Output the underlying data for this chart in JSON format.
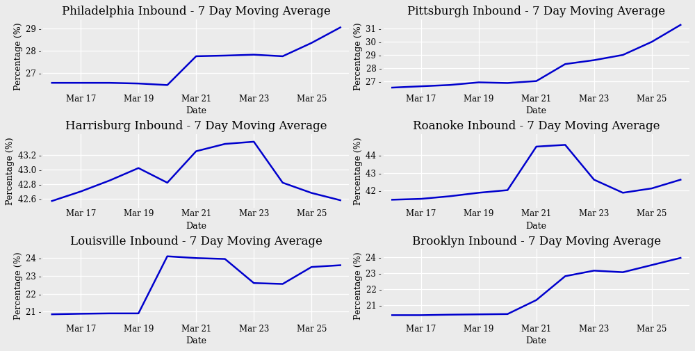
{
  "charts": [
    {
      "title": "Philadelphia Inbound - 7 Day Moving Average",
      "col": 0,
      "row": 0,
      "values": [
        26.55,
        26.55,
        26.55,
        26.52,
        26.45,
        27.75,
        27.78,
        27.82,
        27.75,
        28.35,
        29.05
      ],
      "yticks": [
        27,
        28,
        29
      ],
      "ylim": [
        26.1,
        29.4
      ]
    },
    {
      "title": "Pittsburgh Inbound - 7 Day Moving Average",
      "col": 1,
      "row": 0,
      "values": [
        26.5,
        26.6,
        26.7,
        26.9,
        26.85,
        27.0,
        28.3,
        28.6,
        29.0,
        30.0,
        31.3
      ],
      "yticks": [
        27,
        28,
        29,
        30,
        31
      ],
      "ylim": [
        26.1,
        31.7
      ]
    },
    {
      "title": "Harrisburg Inbound - 7 Day Moving Average",
      "col": 0,
      "row": 1,
      "values": [
        42.57,
        42.7,
        42.85,
        43.02,
        42.82,
        43.25,
        43.35,
        43.38,
        42.82,
        42.68,
        42.58
      ],
      "yticks": [
        42.6,
        42.8,
        43.0,
        43.2
      ],
      "ylim": [
        42.48,
        43.48
      ]
    },
    {
      "title": "Roanoke Inbound - 7 Day Moving Average",
      "col": 1,
      "row": 1,
      "values": [
        41.45,
        41.5,
        41.65,
        41.85,
        42.0,
        44.5,
        44.6,
        42.6,
        41.85,
        42.1,
        42.6
      ],
      "yticks": [
        42,
        43,
        44
      ],
      "ylim": [
        41.0,
        45.2
      ]
    },
    {
      "title": "Louisville Inbound - 7 Day Moving Average",
      "col": 0,
      "row": 2,
      "values": [
        20.85,
        20.88,
        20.9,
        20.9,
        24.1,
        24.0,
        23.95,
        22.6,
        22.55,
        23.5,
        23.6
      ],
      "yticks": [
        21,
        22,
        23,
        24
      ],
      "ylim": [
        20.4,
        24.5
      ]
    },
    {
      "title": "Brooklyn Inbound - 7 Day Moving Average",
      "col": 1,
      "row": 2,
      "values": [
        20.35,
        20.35,
        20.38,
        20.4,
        20.42,
        21.3,
        22.8,
        23.15,
        23.05,
        23.5,
        23.95
      ],
      "yticks": [
        21,
        22,
        23,
        24
      ],
      "ylim": [
        19.9,
        24.5
      ]
    }
  ],
  "line_color": "#0000CD",
  "line_width": 1.8,
  "bg_color": "#EBEBEB",
  "grid_color": "#FFFFFF",
  "xlabel": "Date",
  "ylabel": "Percentage (%)",
  "xtick_labels": [
    "Mar 17",
    "Mar 19",
    "Mar 21",
    "Mar 23",
    "Mar 25"
  ],
  "xtick_positions": [
    1,
    3,
    5,
    7,
    9
  ],
  "title_fontsize": 12,
  "axis_fontsize": 9,
  "tick_fontsize": 8.5
}
